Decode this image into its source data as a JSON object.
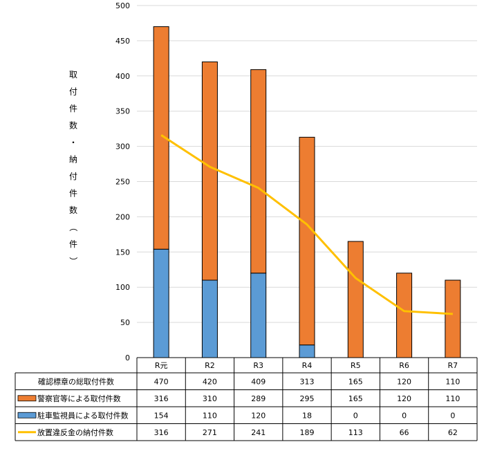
{
  "chart_data": {
    "type": "bar",
    "stacked": true,
    "categories": [
      "R元",
      "R2",
      "R3",
      "R4",
      "R5",
      "R6",
      "R7"
    ],
    "ylabel": "取付件数・納付件数（件）",
    "ylim": [
      0,
      500
    ],
    "yticks": [
      "0",
      "50",
      "100",
      "150",
      "200",
      "250",
      "300",
      "350",
      "400",
      "450",
      "500"
    ],
    "grid": true,
    "colors": {
      "orange": "#ed7d31",
      "blue": "#5b9bd5",
      "yellow": "#ffc000",
      "grid": "#d9d9d9"
    },
    "series": [
      {
        "name": "駐車監視員による取付件数",
        "kind": "bar",
        "color": "#5b9bd5",
        "values": [
          154,
          110,
          120,
          18,
          0,
          0,
          0
        ]
      },
      {
        "name": "警察官等による取付件数",
        "kind": "bar",
        "color": "#ed7d31",
        "values": [
          316,
          310,
          289,
          295,
          165,
          120,
          110
        ]
      },
      {
        "name": "放置違反金の納付件数",
        "kind": "line",
        "color": "#ffc000",
        "values": [
          316,
          271,
          241,
          189,
          113,
          66,
          62
        ]
      }
    ],
    "table": {
      "rows": [
        {
          "label": "確認標章の総取付件数",
          "legend": "none",
          "values": [
            "470",
            "420",
            "409",
            "313",
            "165",
            "120",
            "110"
          ]
        },
        {
          "label": "警察官等による取付件数",
          "legend": "orange-box",
          "values": [
            "316",
            "310",
            "289",
            "295",
            "165",
            "120",
            "110"
          ]
        },
        {
          "label": "駐車監視員による取付件数",
          "legend": "blue-box",
          "values": [
            "154",
            "110",
            "120",
            "18",
            "0",
            "0",
            "0"
          ]
        },
        {
          "label": "放置違反金の納付件数",
          "legend": "yellow-line",
          "values": [
            "316",
            "271",
            "241",
            "189",
            "113",
            "66",
            "62"
          ]
        }
      ]
    }
  }
}
